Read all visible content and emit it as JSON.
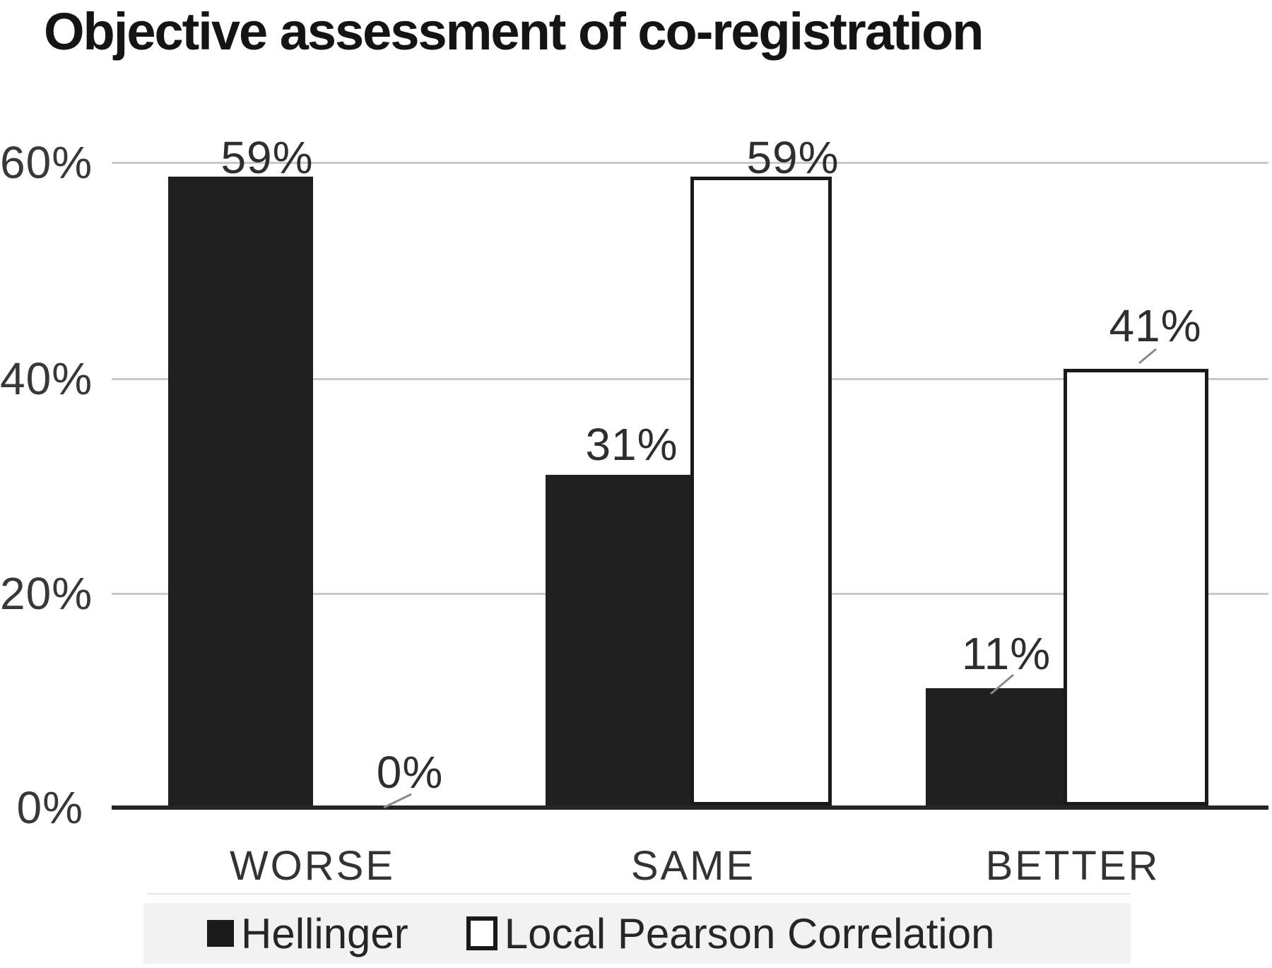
{
  "chart_data": {
    "type": "bar",
    "title": "Objective assessment of co-registration",
    "categories": [
      "WORSE",
      "SAME",
      "BETTER"
    ],
    "series": [
      {
        "name": "Hellinger",
        "values": [
          59,
          31,
          11
        ],
        "fill": "#1f1f1f",
        "style": "solid"
      },
      {
        "name": "Local Pearson Correlation",
        "values": [
          0,
          59,
          41
        ],
        "fill": "#ffffff",
        "border": "#1a1a1a",
        "style": "outline"
      }
    ],
    "value_labels": {
      "Hellinger": [
        "59%",
        "31%",
        "11%"
      ],
      "Local Pearson Correlation": [
        "0%",
        "59%",
        "41%"
      ]
    },
    "y_ticks": [
      "60%",
      "40%",
      "20%",
      "0%"
    ],
    "ylabel": "",
    "xlabel": "",
    "ylim": [
      0,
      60
    ],
    "grid": true,
    "gridline_color": "#c9c9c9",
    "axis_color": "#262626",
    "legend_position": "bottom",
    "legend_background": "#f2f2f2"
  }
}
